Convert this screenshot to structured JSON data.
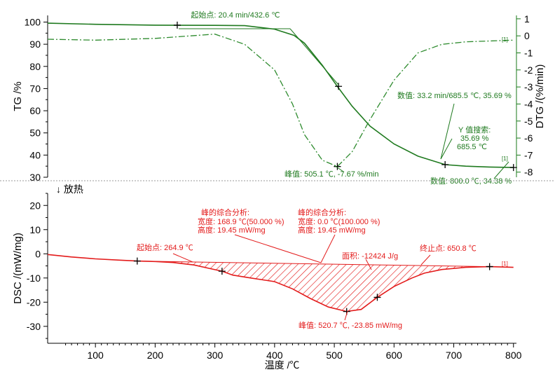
{
  "colors": {
    "tg": "#1f7a1f",
    "dtg": "#2e8b2e",
    "dsc": "#e31b1b",
    "axis": "#000000",
    "green_axis": "#1a7a1a",
    "grid": "#bbbbbb"
  },
  "chart_data": [
    {
      "type": "line",
      "title": "",
      "xlabel": "",
      "ylabel": "TG /%",
      "y2label": "DTG /(%/min)",
      "ylim": [
        30,
        103
      ],
      "y2lim": [
        -8.3,
        1.2
      ],
      "yticks": [
        30,
        40,
        50,
        60,
        70,
        80,
        90,
        100
      ],
      "y2ticks": [
        0,
        -1,
        -2,
        -3,
        -4,
        -5,
        -6,
        -7,
        -8
      ],
      "y2tick_labels_extra": [
        "1"
      ],
      "series": [
        {
          "axis": "y",
          "style": "solid",
          "x": [
            20,
            100,
            200,
            300,
            350,
            400,
            432.6,
            450,
            480,
            505.1,
            530,
            560,
            600,
            640,
            685.5,
            720,
            760,
            800
          ],
          "values": [
            99.5,
            99.0,
            98.6,
            98.5,
            98.4,
            96.8,
            94.0,
            90.5,
            80.5,
            71.0,
            62.0,
            53.0,
            45.0,
            39.5,
            35.69,
            35.0,
            34.6,
            34.38
          ]
        },
        {
          "axis": "y2",
          "style": "dashdot",
          "x": [
            20,
            100,
            200,
            300,
            350,
            400,
            430,
            450,
            480,
            505.1,
            530,
            560,
            600,
            640,
            680,
            720,
            760,
            800
          ],
          "values": [
            -0.2,
            -0.25,
            -0.15,
            0.1,
            -0.5,
            -2.0,
            -4.0,
            -5.8,
            -7.3,
            -7.67,
            -6.8,
            -4.9,
            -2.6,
            -1.0,
            -0.5,
            -0.35,
            -0.3,
            -0.25
          ]
        }
      ],
      "annotations": [
        {
          "text": "起始点: 20.4 min/432.6 ℃",
          "x": 432.6,
          "y": 99
        },
        {
          "text": "峰值: 505.1 ℃, -7.67 %/min",
          "x": 505.1,
          "y2": -7.67
        },
        {
          "text": "数值: 33.2 min/685.5 ℃, 35.69 %",
          "x": 685.5,
          "y": 35.69
        },
        {
          "text": "Y 值搜索:",
          "x": 685.5,
          "y": 35.69
        },
        {
          "text": "35.69 %",
          "x": 685.5,
          "y": 35.69
        },
        {
          "text": "685.5 ℃",
          "x": 685.5,
          "y": 35.69
        },
        {
          "text": "数值: 800.0 ℃, 34.38 %",
          "x": 800,
          "y": 34.38
        }
      ],
      "markers": [
        {
          "x": 237,
          "y": 98.6
        },
        {
          "x": 507,
          "y": 71
        },
        {
          "x": 685.5,
          "y": 35.69
        },
        {
          "x": 505.1,
          "y2": -7.67
        },
        {
          "x": 800,
          "y": 34.38
        }
      ],
      "tags": [
        "[1]",
        "[1]"
      ]
    },
    {
      "type": "line",
      "title": "",
      "xlabel": "温度 /℃",
      "ylabel": "DSC /(mW/mg)",
      "direction_label": "↓ 放热",
      "xlim": [
        20,
        805
      ],
      "ylim": [
        -37,
        25
      ],
      "xticks": [
        100,
        200,
        300,
        400,
        500,
        600,
        700,
        800
      ],
      "yticks": [
        20,
        10,
        0,
        -10,
        -20,
        -30
      ],
      "series": [
        {
          "x": [
            20,
            60,
            100,
            140,
            170,
            200,
            230,
            264.9,
            290,
            312,
            330,
            360,
            400,
            430,
            460,
            490,
            520.7,
            545,
            572,
            600,
            630,
            650.8,
            680,
            720,
            760,
            800
          ],
          "values": [
            -0.3,
            -1.3,
            -2.1,
            -2.6,
            -3.0,
            -3.2,
            -3.6,
            -4.6,
            -6.0,
            -7.2,
            -8.8,
            -10.0,
            -11.5,
            -14.5,
            -18.5,
            -22.0,
            -23.85,
            -23.0,
            -18.0,
            -13.5,
            -10.0,
            -8.0,
            -6.5,
            -5.6,
            -5.3,
            -5.6
          ]
        }
      ],
      "baseline": {
        "x": [
          170,
          760
        ],
        "values": [
          -3.0,
          -5.3
        ]
      },
      "shaded_region": {
        "from_x": 170,
        "to_x": 760
      },
      "markers": [
        {
          "x": 170,
          "y": -3.0
        },
        {
          "x": 312,
          "y": -7.2
        },
        {
          "x": 520.7,
          "y": -23.85
        },
        {
          "x": 572,
          "y": -18.0
        },
        {
          "x": 760,
          "y": -5.3
        }
      ],
      "annotations": [
        {
          "text": "起始点: 264.9 ℃",
          "x": 264.9,
          "y": -4.6
        },
        {
          "text": "峰的综合分析:",
          "x": 460,
          "y": -4
        },
        {
          "text": "宽度:  168.9 ℃(50.000 %)",
          "x": 460,
          "y": -4
        },
        {
          "text": "高度:   19.45 mW/mg",
          "x": 460,
          "y": -4
        },
        {
          "text": "峰的综合分析:",
          "x": 460,
          "y": -4
        },
        {
          "text": "宽度:     0.0 ℃(100.000 %)",
          "x": 460,
          "y": -4
        },
        {
          "text": "高度:  19.45 mW/mg",
          "x": 460,
          "y": -4
        },
        {
          "text": "面积: -12424 J/g",
          "x": 520,
          "y": -4
        },
        {
          "text": "终止点: 650.8 ℃",
          "x": 650.8,
          "y": -8
        },
        {
          "text": "峰值: 520.7 ℃, -23.85 mW/mg",
          "x": 520.7,
          "y": -23.85
        }
      ],
      "tags": [
        "[1]"
      ]
    }
  ]
}
